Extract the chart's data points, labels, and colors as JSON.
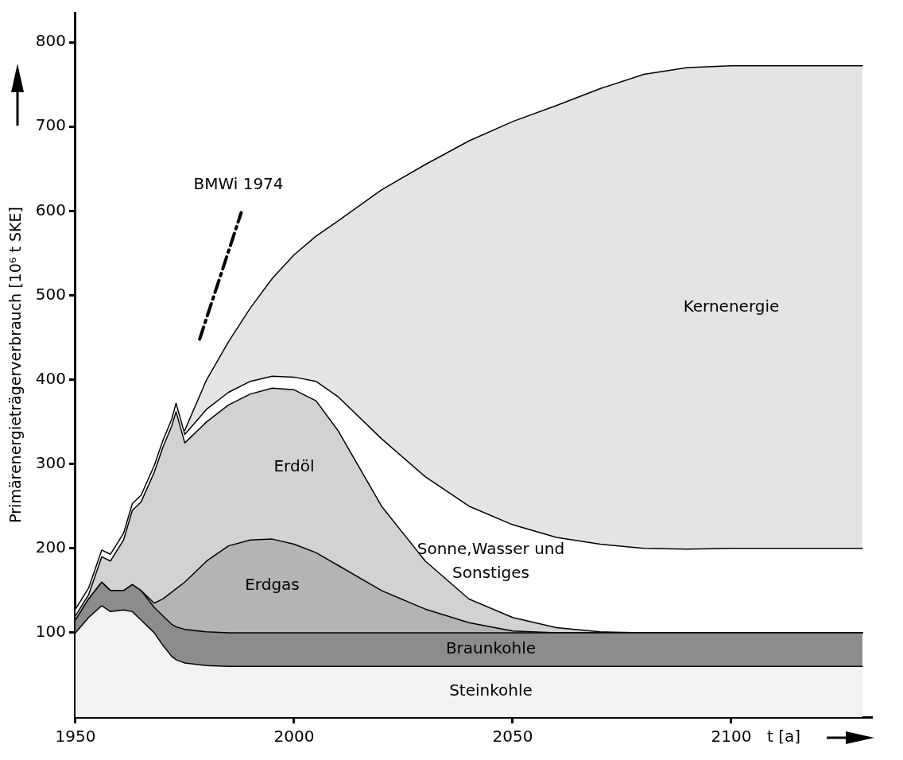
{
  "chart_data": {
    "type": "area",
    "stacked": true,
    "xlabel": "t [a]",
    "ylabel": "Primärenergieträgerverbrauch [10⁶ t SKE]",
    "x": [
      1950,
      1953,
      1956,
      1958,
      1961,
      1963,
      1965,
      1968,
      1970,
      1972,
      1973,
      1975,
      1980,
      1985,
      1990,
      1995,
      2000,
      2005,
      2010,
      2020,
      2030,
      2040,
      2050,
      2060,
      2070,
      2080,
      2090,
      2100,
      2110,
      2130
    ],
    "series": [
      {
        "name": "Steinkohle",
        "color": "#f2f2f2",
        "values": [
          100,
          118,
          132,
          125,
          127,
          125,
          115,
          100,
          85,
          72,
          68,
          64,
          61,
          60,
          60,
          60,
          60,
          60,
          60,
          60,
          60,
          60,
          60,
          60,
          60,
          60,
          60,
          60,
          60,
          60
        ]
      },
      {
        "name": "Braunkohle",
        "color": "#8c8c8c",
        "values": [
          15,
          22,
          28,
          25,
          23,
          32,
          35,
          30,
          35,
          38,
          39,
          40,
          40,
          40,
          40,
          40,
          40,
          40,
          40,
          40,
          40,
          40,
          40,
          40,
          40,
          40,
          40,
          40,
          40,
          40
        ]
      },
      {
        "name": "Erdgas",
        "color": "#b4b4b4",
        "values": [
          0,
          0,
          0,
          0,
          0,
          0,
          0,
          5,
          20,
          38,
          45,
          56,
          84,
          103,
          110,
          111,
          105,
          95,
          80,
          50,
          28,
          12,
          2,
          0,
          0,
          0,
          0,
          0,
          0,
          0
        ]
      },
      {
        "name": "Erdöl",
        "color": "#d2d2d2",
        "values": [
          5,
          5,
          30,
          35,
          60,
          88,
          105,
          155,
          180,
          197,
          210,
          165,
          165,
          167,
          173,
          179,
          183,
          180,
          160,
          100,
          57,
          28,
          16,
          6,
          1,
          0,
          0,
          0,
          0,
          0
        ]
      },
      {
        "name": "Sonne,Wasser und Sonstiges",
        "color": "#ffffff",
        "values": [
          8,
          8,
          8,
          8,
          8,
          8,
          8,
          8,
          8,
          8,
          10,
          10,
          15,
          15,
          15,
          14,
          15,
          23,
          40,
          80,
          100,
          110,
          110,
          107,
          104,
          100,
          99,
          100,
          100,
          100
        ]
      },
      {
        "name": "Kernenergie",
        "color": "#e4e4e4",
        "values": [
          null,
          null,
          null,
          null,
          null,
          null,
          null,
          null,
          null,
          null,
          null,
          5,
          35,
          60,
          87,
          116,
          145,
          172,
          208,
          295,
          370,
          433,
          478,
          512,
          540,
          562,
          571,
          572,
          572,
          572
        ]
      },
      {
        "name": "BMWi 1974",
        "type": "line",
        "color": "#000000",
        "line_style": "dashed",
        "x": [
          1978.4,
          1987.9
        ],
        "values": [
          448,
          598
        ]
      }
    ],
    "xlim": [
      1950,
      2132
    ],
    "xticks": [
      1950,
      2000,
      2050,
      2100
    ],
    "ylim": [
      0,
      835
    ],
    "yticks": [
      100,
      200,
      300,
      400,
      500,
      600,
      700,
      800
    ],
    "grid": false,
    "legend": false
  }
}
